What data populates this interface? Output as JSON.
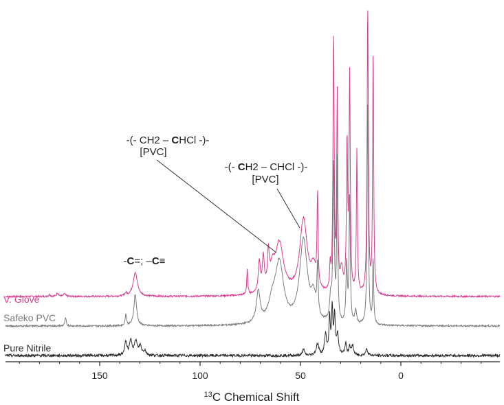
{
  "chart_data": {
    "type": "line",
    "title": "",
    "xlabel": "13C Chemical Shift",
    "xlabel_parts": {
      "superscript": "13",
      "text": "C Chemical Shift"
    },
    "ylabel": "",
    "x_reversed": true,
    "xlim": [
      200,
      -50
    ],
    "x_ticks": [
      150,
      100,
      50,
      0
    ],
    "x_tick_labels": [
      "150",
      "100",
      "50",
      "0"
    ],
    "grid": false,
    "legend": "labels at left of each trace",
    "series": [
      {
        "name": "V. Glove",
        "color": "#d63c8f",
        "baseline": 0,
        "noise": 0.018,
        "peaks": [
          {
            "x": 175,
            "h": 0.04,
            "w": 0.6
          },
          {
            "x": 171,
            "h": 0.08,
            "w": 0.6
          },
          {
            "x": 167.5,
            "h": 0.06,
            "w": 0.6
          },
          {
            "x": 137,
            "h": 0.06,
            "w": 0.6
          },
          {
            "x": 132.3,
            "h": 0.52,
            "w": 1.3
          },
          {
            "x": 76.5,
            "h": 0.55,
            "w": 0.3
          },
          {
            "x": 70.5,
            "h": 0.68,
            "w": 0.6
          },
          {
            "x": 68.5,
            "h": 0.72,
            "w": 0.6
          },
          {
            "x": 66,
            "h": 0.75,
            "w": 0.5
          },
          {
            "x": 64,
            "h": 0.45,
            "w": 1.5
          },
          {
            "x": 60.5,
            "h": 1.1,
            "w": 2.5
          },
          {
            "x": 48.5,
            "h": 1.65,
            "w": 2.2
          },
          {
            "x": 43.5,
            "h": 0.5,
            "w": 1.5
          },
          {
            "x": 41.5,
            "h": 2.05,
            "w": 0.3
          },
          {
            "x": 35.2,
            "h": 0.55,
            "w": 0.3
          },
          {
            "x": 33.5,
            "h": 5.7,
            "w": 0.35
          },
          {
            "x": 31.7,
            "h": 4.3,
            "w": 0.3
          },
          {
            "x": 29.5,
            "h": 0.5,
            "w": 0.8
          },
          {
            "x": 26.8,
            "h": 3.25,
            "w": 0.35
          },
          {
            "x": 25.5,
            "h": 4.75,
            "w": 0.35
          },
          {
            "x": 21.9,
            "h": 3.15,
            "w": 0.3
          },
          {
            "x": 16.5,
            "h": 6.4,
            "w": 0.35
          },
          {
            "x": 13.8,
            "h": 5.45,
            "w": 0.3
          }
        ]
      },
      {
        "name": "Safeko PVC",
        "color": "#7a7a7a",
        "baseline": 0,
        "noise": 0.018,
        "peaks": [
          {
            "x": 167,
            "h": 0.18,
            "w": 0.4
          },
          {
            "x": 137,
            "h": 0.25,
            "w": 0.4
          },
          {
            "x": 132.3,
            "h": 0.7,
            "w": 0.8
          },
          {
            "x": 71,
            "h": 0.7,
            "w": 1.1
          },
          {
            "x": 64,
            "h": 0.4,
            "w": 2.2
          },
          {
            "x": 60.5,
            "h": 1.3,
            "w": 2.5
          },
          {
            "x": 48.5,
            "h": 1.85,
            "w": 2.3
          },
          {
            "x": 43.5,
            "h": 0.5,
            "w": 1.5
          },
          {
            "x": 41.5,
            "h": 1.1,
            "w": 0.35
          },
          {
            "x": 35,
            "h": 0.5,
            "w": 0.6
          },
          {
            "x": 33.5,
            "h": 3.5,
            "w": 0.4
          },
          {
            "x": 31.7,
            "h": 3.55,
            "w": 0.3
          },
          {
            "x": 27,
            "h": 1.3,
            "w": 0.4
          },
          {
            "x": 25.5,
            "h": 2.75,
            "w": 0.35
          },
          {
            "x": 22.5,
            "h": 0.3,
            "w": 0.5
          },
          {
            "x": 16.5,
            "h": 5.0,
            "w": 0.35
          },
          {
            "x": 13.8,
            "h": 1.45,
            "w": 0.3
          }
        ]
      },
      {
        "name": "Pure Nitrile",
        "color": "#2a2a2a",
        "baseline": 0,
        "noise": 0.03,
        "peaks": [
          {
            "x": 137,
            "h": 0.3,
            "w": 0.6
          },
          {
            "x": 134.5,
            "h": 0.32,
            "w": 0.8
          },
          {
            "x": 132,
            "h": 0.3,
            "w": 0.8
          },
          {
            "x": 129.8,
            "h": 0.2,
            "w": 0.8
          },
          {
            "x": 127.5,
            "h": 0.1,
            "w": 0.7
          },
          {
            "x": 48.5,
            "h": 0.15,
            "w": 0.5
          },
          {
            "x": 41.5,
            "h": 0.25,
            "w": 0.8
          },
          {
            "x": 37.5,
            "h": 0.45,
            "w": 0.6
          },
          {
            "x": 35.5,
            "h": 0.8,
            "w": 0.4
          },
          {
            "x": 34.2,
            "h": 1.0,
            "w": 0.4
          },
          {
            "x": 33,
            "h": 0.85,
            "w": 0.4
          },
          {
            "x": 31.5,
            "h": 0.45,
            "w": 0.6
          },
          {
            "x": 27.5,
            "h": 0.25,
            "w": 0.5
          },
          {
            "x": 25.5,
            "h": 0.2,
            "w": 0.5
          },
          {
            "x": 24,
            "h": 0.22,
            "w": 0.5
          },
          {
            "x": 17,
            "h": 0.15,
            "w": 0.6
          }
        ]
      }
    ],
    "annotations": [
      {
        "id": "ann-ch2-chcl-chcl",
        "pre": "-(- CH2 – ",
        "bold": "C",
        "post": "HCl  -)-",
        "sub": "[PVC]",
        "points_to_x": 60.5
      },
      {
        "id": "ann-ch2-ch2",
        "pre": "-(- ",
        "bold": "C",
        "post": "H2 – CHCl  -)-",
        "sub": "[PVC]",
        "points_to_x": 48.5
      },
      {
        "id": "ann-alkene",
        "text_parts": [
          "-",
          "C",
          "=; –",
          "C",
          "≡"
        ]
      }
    ]
  }
}
